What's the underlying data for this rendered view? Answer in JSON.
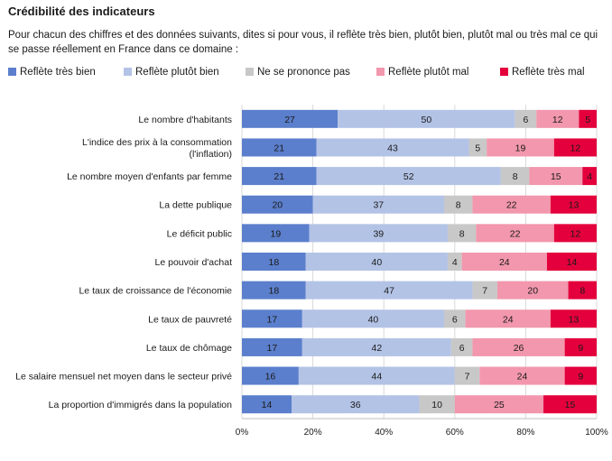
{
  "title": "Crédibilité des indicateurs",
  "subtitle": "Pour chacun des chiffres et des données suivants, dites si pour vous, il reflète très bien, plutôt bien, plutôt mal ou très mal ce qui se passe réellement en France dans ce domaine :",
  "chart_data": {
    "type": "bar",
    "orientation": "horizontal",
    "stacked": true,
    "categories": [
      [
        "Le nombre d'habitants"
      ],
      [
        "L'indice des prix à la consommation",
        "(l'inflation)"
      ],
      [
        "Le nombre moyen d'enfants par femme"
      ],
      [
        "La dette publique"
      ],
      [
        "Le déficit public"
      ],
      [
        "Le pouvoir d'achat"
      ],
      [
        "Le taux de croissance de l'économie"
      ],
      [
        "Le taux de pauvreté"
      ],
      [
        "Le taux de chômage"
      ],
      [
        "Le salaire mensuel net moyen dans le secteur privé"
      ],
      [
        "La proportion d'immigrés dans la population"
      ]
    ],
    "series": [
      {
        "name": "Reflète très bien",
        "color": "#5b7fcc",
        "label_color": "#1a1a1a",
        "values": [
          27,
          21,
          21,
          20,
          19,
          18,
          18,
          17,
          17,
          16,
          14
        ]
      },
      {
        "name": "Reflète plutôt bien",
        "color": "#b3c3e6",
        "label_color": "#1a1a1a",
        "values": [
          50,
          43,
          52,
          37,
          39,
          40,
          47,
          40,
          42,
          44,
          36
        ]
      },
      {
        "name": "Ne se prononce pas",
        "color": "#c8c8c8",
        "label_color": "#1a1a1a",
        "values": [
          6,
          5,
          8,
          8,
          8,
          4,
          7,
          6,
          6,
          7,
          10
        ]
      },
      {
        "name": "Reflète plutôt mal",
        "color": "#f297ad",
        "label_color": "#1a1a1a",
        "values": [
          12,
          19,
          15,
          22,
          22,
          24,
          20,
          24,
          26,
          24,
          25
        ]
      },
      {
        "name": "Reflète très mal",
        "color": "#e3003c",
        "label_color": "#1a1a1a",
        "values": [
          5,
          12,
          4,
          13,
          12,
          14,
          8,
          13,
          9,
          9,
          15
        ]
      }
    ],
    "x_ticks": [
      "0%",
      "20%",
      "40%",
      "60%",
      "80%",
      "100%"
    ],
    "xlim": [
      0,
      100
    ],
    "grid": true,
    "legend_position": "top"
  }
}
